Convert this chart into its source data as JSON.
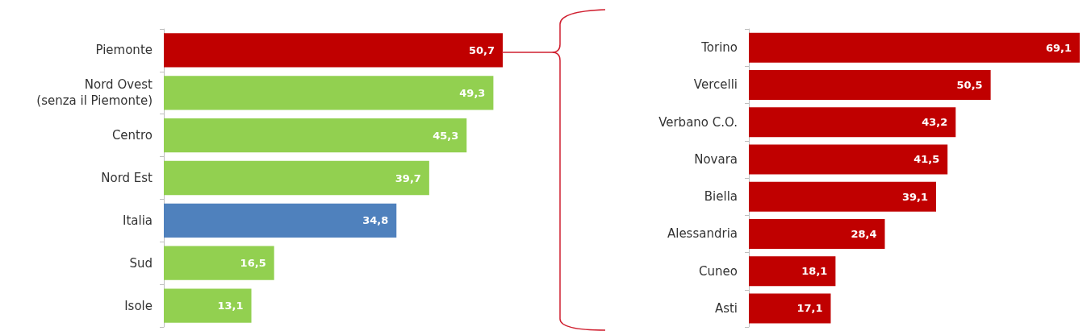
{
  "chart_data": [
    {
      "type": "bar",
      "orientation": "horizontal",
      "categories": [
        "Piemonte",
        "Nord Ovest\n(senza il Piemonte)",
        "Centro",
        "Nord Est",
        "Italia",
        "Sud",
        "Isole"
      ],
      "values": [
        50.7,
        49.3,
        45.3,
        39.7,
        34.8,
        16.5,
        13.1
      ],
      "colors": [
        "#c00000",
        "#92d050",
        "#92d050",
        "#92d050",
        "#4f81bd",
        "#92d050",
        "#92d050"
      ],
      "value_labels": [
        "50,7",
        "49,3",
        "45,3",
        "39,7",
        "34,8",
        "16,5",
        "13,1"
      ]
    },
    {
      "type": "bar",
      "orientation": "horizontal",
      "categories": [
        "Torino",
        "Vercelli",
        "Verbano C.O.",
        "Novara",
        "Biella",
        "Alessandria",
        "Cuneo",
        "Asti"
      ],
      "values": [
        69.1,
        50.5,
        43.2,
        41.5,
        39.1,
        28.4,
        18.1,
        17.1
      ],
      "colors": [
        "#c00000",
        "#c00000",
        "#c00000",
        "#c00000",
        "#c00000",
        "#c00000",
        "#c00000",
        "#c00000"
      ],
      "value_labels": [
        "69,1",
        "50,5",
        "43,2",
        "41,5",
        "39,1",
        "28,4",
        "18,1",
        "17,1"
      ]
    }
  ]
}
